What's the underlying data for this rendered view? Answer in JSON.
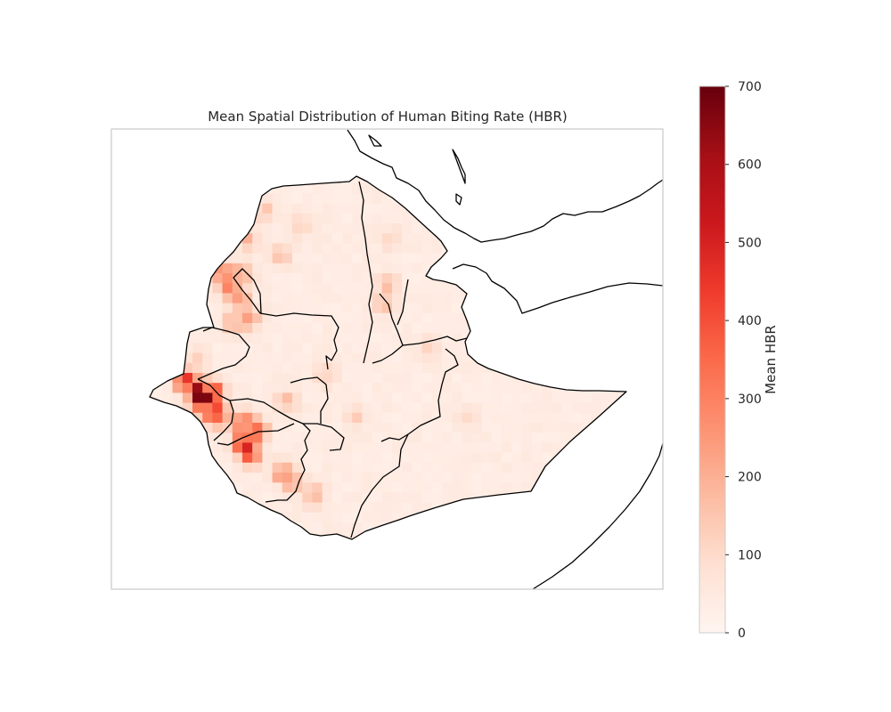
{
  "chart_data": {
    "type": "heatmap",
    "title": "Mean Spatial Distribution of Human Biting Rate (HBR)",
    "colorbar": {
      "label": "Mean HBR",
      "min": 0,
      "max": 700,
      "ticks": [
        0,
        100,
        200,
        300,
        400,
        500,
        600,
        700
      ],
      "colormap": "Reds",
      "stops": [
        "#fff5f0",
        "#fee0d2",
        "#fcbba1",
        "#fc9272",
        "#fb6a4a",
        "#ef3b2c",
        "#cb181d",
        "#a50f15",
        "#67000d"
      ]
    },
    "hotspots": [
      {
        "lon": 34.8,
        "lat": 7.9,
        "value": 700
      },
      {
        "lon": 34.6,
        "lat": 8.2,
        "value": 560
      },
      {
        "lon": 35.1,
        "lat": 8.0,
        "value": 480
      },
      {
        "lon": 34.3,
        "lat": 8.4,
        "value": 420
      },
      {
        "lon": 35.2,
        "lat": 7.4,
        "value": 450
      },
      {
        "lon": 36.1,
        "lat": 6.5,
        "value": 500
      },
      {
        "lon": 36.4,
        "lat": 6.9,
        "value": 400
      },
      {
        "lon": 36.0,
        "lat": 7.1,
        "value": 360
      },
      {
        "lon": 36.3,
        "lat": 6.2,
        "value": 380
      },
      {
        "lon": 35.6,
        "lat": 11.4,
        "value": 300
      },
      {
        "lon": 35.9,
        "lat": 11.0,
        "value": 260
      },
      {
        "lon": 35.4,
        "lat": 11.8,
        "value": 240
      },
      {
        "lon": 36.0,
        "lat": 11.7,
        "value": 230
      },
      {
        "lon": 36.2,
        "lat": 10.4,
        "value": 240
      },
      {
        "lon": 35.8,
        "lat": 10.2,
        "value": 200
      },
      {
        "lon": 37.3,
        "lat": 5.6,
        "value": 230
      },
      {
        "lon": 37.6,
        "lat": 5.3,
        "value": 180
      },
      {
        "lon": 38.2,
        "lat": 4.9,
        "value": 170
      },
      {
        "lon": 36.2,
        "lat": 12.8,
        "value": 150
      },
      {
        "lon": 36.7,
        "lat": 13.6,
        "value": 120
      },
      {
        "lon": 37.8,
        "lat": 13.2,
        "value": 90
      },
      {
        "lon": 37.2,
        "lat": 12.3,
        "value": 110
      },
      {
        "lon": 34.4,
        "lat": 7.2,
        "value": 150
      },
      {
        "lon": 34.6,
        "lat": 9.0,
        "value": 130
      },
      {
        "lon": 40.4,
        "lat": 10.8,
        "value": 150
      },
      {
        "lon": 40.5,
        "lat": 11.4,
        "value": 130
      },
      {
        "lon": 40.6,
        "lat": 12.8,
        "value": 80
      },
      {
        "lon": 41.8,
        "lat": 9.4,
        "value": 80
      },
      {
        "lon": 43.0,
        "lat": 7.3,
        "value": 70
      },
      {
        "lon": 39.5,
        "lat": 7.3,
        "value": 90
      },
      {
        "lon": 38.6,
        "lat": 8.6,
        "value": 110
      },
      {
        "lon": 37.4,
        "lat": 7.8,
        "value": 130
      }
    ]
  }
}
